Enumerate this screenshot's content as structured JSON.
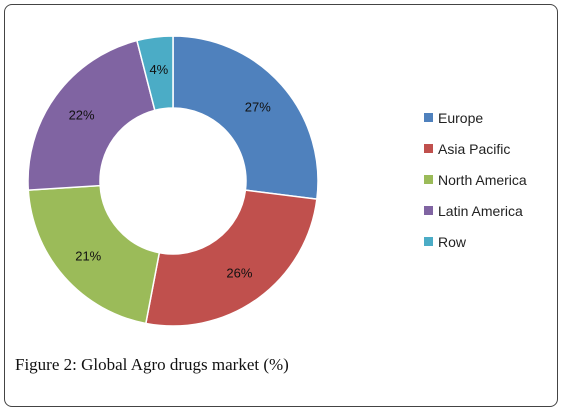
{
  "chart_data": {
    "type": "pie",
    "donut": true,
    "categories": [
      "Europe",
      "Asia Pacific",
      "North America",
      "Latin America",
      "Row"
    ],
    "values": [
      27,
      26,
      21,
      22,
      4
    ],
    "labels": [
      "27%",
      "26%",
      "21%",
      "22%",
      "4%"
    ],
    "colors": [
      "#4f81bd",
      "#c0504d",
      "#9bbb59",
      "#8064a2",
      "#4bacc6"
    ],
    "legend_position": "right"
  },
  "caption": "Figure 2: Global Agro drugs market (%)"
}
